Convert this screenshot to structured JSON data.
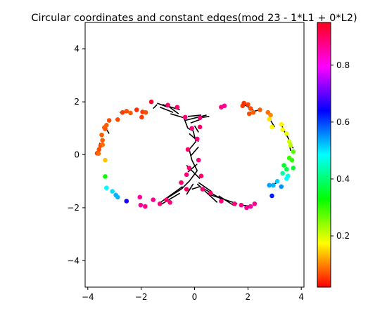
{
  "chart_data": {
    "type": "scatter",
    "title": "Circular coordinates and constant edges(mod 23 - 1*L1 + 0*L2)",
    "xlim": [
      -4.1,
      4.1
    ],
    "ylim": [
      -5,
      5
    ],
    "xticks": [
      -4,
      -2,
      0,
      2,
      4
    ],
    "yticks": [
      -4,
      -2,
      0,
      2,
      4
    ],
    "xticklabels": [
      "−4",
      "−2",
      "0",
      "2",
      "4"
    ],
    "yticklabels": [
      "−4",
      "−2",
      "0",
      "2",
      "4"
    ],
    "colorbar": {
      "cmap": "hsv",
      "range": [
        0.02,
        0.95
      ],
      "ticks": [
        0.2,
        0.4,
        0.6,
        0.8
      ],
      "ticklabels": [
        "0.2",
        "0.4",
        "0.6",
        "0.8"
      ]
    },
    "points": [
      {
        "x": -3.65,
        "y": 0.06,
        "c": 0.04
      },
      {
        "x": -3.58,
        "y": 0.2,
        "c": 0.05
      },
      {
        "x": -3.52,
        "y": 0.35,
        "c": 0.05
      },
      {
        "x": -3.45,
        "y": 0.55,
        "c": 0.06
      },
      {
        "x": -3.48,
        "y": 0.75,
        "c": 0.06
      },
      {
        "x": -3.35,
        "y": 0.98,
        "c": 0.05
      },
      {
        "x": -3.3,
        "y": 1.12,
        "c": 0.06
      },
      {
        "x": -3.2,
        "y": 1.3,
        "c": 0.05
      },
      {
        "x": -3.38,
        "y": 1.03,
        "c": 0.06
      },
      {
        "x": -2.88,
        "y": 1.33,
        "c": 0.05
      },
      {
        "x": -2.7,
        "y": 1.6,
        "c": 0.04
      },
      {
        "x": -2.55,
        "y": 1.65,
        "c": 0.05
      },
      {
        "x": -2.4,
        "y": 1.58,
        "c": 0.06
      },
      {
        "x": -2.17,
        "y": 1.7,
        "c": 0.03
      },
      {
        "x": -1.95,
        "y": 1.62,
        "c": 0.04
      },
      {
        "x": -1.83,
        "y": 1.6,
        "c": 0.05
      },
      {
        "x": -1.98,
        "y": 1.42,
        "c": 0.04
      },
      {
        "x": -1.62,
        "y": 2.0,
        "c": 0.97
      },
      {
        "x": -3.45,
        "y": 0.38,
        "c": 0.07
      },
      {
        "x": -3.6,
        "y": 0.05,
        "c": 0.07
      },
      {
        "x": -3.35,
        "y": -0.2,
        "c": 0.13
      },
      {
        "x": -3.35,
        "y": -0.82,
        "c": 0.33
      },
      {
        "x": -3.3,
        "y": -1.25,
        "c": 0.5
      },
      {
        "x": -3.08,
        "y": -1.38,
        "c": 0.52
      },
      {
        "x": -2.95,
        "y": -1.52,
        "c": 0.55
      },
      {
        "x": -2.88,
        "y": -1.6,
        "c": 0.55
      },
      {
        "x": -2.55,
        "y": -1.75,
        "c": 0.68
      },
      {
        "x": -2.05,
        "y": -1.6,
        "c": 0.9
      },
      {
        "x": -2.02,
        "y": -1.9,
        "c": 0.9
      },
      {
        "x": -1.85,
        "y": -1.95,
        "c": 0.91
      },
      {
        "x": -1.55,
        "y": -1.7,
        "c": 0.91
      },
      {
        "x": -1.3,
        "y": -1.85,
        "c": 0.92
      },
      {
        "x": -1.05,
        "y": -1.7,
        "c": 0.93
      },
      {
        "x": -0.92,
        "y": -1.8,
        "c": 0.92
      },
      {
        "x": -1.0,
        "y": 1.88,
        "c": 0.93
      },
      {
        "x": -0.65,
        "y": 1.8,
        "c": 0.93
      },
      {
        "x": -0.35,
        "y": 1.42,
        "c": 0.92
      },
      {
        "x": 0.2,
        "y": 1.4,
        "c": 0.92
      },
      {
        "x": 1.0,
        "y": 1.8,
        "c": 0.92
      },
      {
        "x": 1.12,
        "y": 1.85,
        "c": 0.9
      },
      {
        "x": 1.8,
        "y": 1.85,
        "c": 0.04
      },
      {
        "x": 1.85,
        "y": 1.95,
        "c": 0.03
      },
      {
        "x": 2.0,
        "y": 1.9,
        "c": 0.04
      },
      {
        "x": 2.1,
        "y": 1.75,
        "c": 0.05
      },
      {
        "x": 2.05,
        "y": 1.55,
        "c": 0.05
      },
      {
        "x": 2.2,
        "y": 1.6,
        "c": 0.06
      },
      {
        "x": 2.45,
        "y": 1.7,
        "c": 0.06
      },
      {
        "x": 2.75,
        "y": 1.6,
        "c": 0.07
      },
      {
        "x": 2.85,
        "y": 1.5,
        "c": 0.09
      },
      {
        "x": 2.8,
        "y": 1.35,
        "c": 0.15
      },
      {
        "x": 2.9,
        "y": 1.05,
        "c": 0.17
      },
      {
        "x": 3.25,
        "y": 1.15,
        "c": 0.16
      },
      {
        "x": 3.3,
        "y": 0.95,
        "c": 0.17
      },
      {
        "x": 3.45,
        "y": 0.8,
        "c": 0.18
      },
      {
        "x": 3.55,
        "y": 0.5,
        "c": 0.2
      },
      {
        "x": 3.6,
        "y": 0.35,
        "c": 0.21
      },
      {
        "x": 3.7,
        "y": 0.12,
        "c": 0.28
      },
      {
        "x": 3.55,
        "y": -0.12,
        "c": 0.3
      },
      {
        "x": 3.65,
        "y": -0.2,
        "c": 0.3
      },
      {
        "x": 3.35,
        "y": -0.4,
        "c": 0.36
      },
      {
        "x": 3.7,
        "y": -0.5,
        "c": 0.36
      },
      {
        "x": 3.45,
        "y": -0.55,
        "c": 0.38
      },
      {
        "x": 3.3,
        "y": -0.7,
        "c": 0.44
      },
      {
        "x": 3.5,
        "y": -0.8,
        "c": 0.48
      },
      {
        "x": 3.45,
        "y": -0.9,
        "c": 0.5
      },
      {
        "x": 3.1,
        "y": -1.0,
        "c": 0.53
      },
      {
        "x": 2.95,
        "y": -1.15,
        "c": 0.55
      },
      {
        "x": 2.8,
        "y": -1.15,
        "c": 0.56
      },
      {
        "x": 3.25,
        "y": -1.2,
        "c": 0.57
      },
      {
        "x": 2.9,
        "y": -1.55,
        "c": 0.65
      },
      {
        "x": 2.25,
        "y": -1.85,
        "c": 0.91
      },
      {
        "x": 2.1,
        "y": -1.95,
        "c": 0.9
      },
      {
        "x": 1.95,
        "y": -2.0,
        "c": 0.9
      },
      {
        "x": 1.75,
        "y": -1.9,
        "c": 0.91
      },
      {
        "x": 1.5,
        "y": -1.85,
        "c": 0.92
      },
      {
        "x": 1.0,
        "y": -1.75,
        "c": 0.92
      },
      {
        "x": 0.6,
        "y": -1.45,
        "c": 0.93
      },
      {
        "x": 0.3,
        "y": -1.3,
        "c": 0.92
      },
      {
        "x": -0.3,
        "y": -1.3,
        "c": 0.93
      },
      {
        "x": -0.5,
        "y": -1.05,
        "c": 0.93
      },
      {
        "x": -0.2,
        "y": -0.5,
        "c": 0.92
      },
      {
        "x": 0.15,
        "y": -0.2,
        "c": 0.92
      },
      {
        "x": -0.25,
        "y": 0.2,
        "c": 0.93
      },
      {
        "x": 0.1,
        "y": 0.6,
        "c": 0.92
      },
      {
        "x": -0.1,
        "y": 1.0,
        "c": 0.92
      },
      {
        "x": 0.25,
        "y": -0.8,
        "c": 0.93
      },
      {
        "x": -0.3,
        "y": -0.75,
        "c": 0.92
      },
      {
        "x": 0.2,
        "y": 1.05,
        "c": 0.93
      }
    ],
    "edges": [
      [
        [
          -3.55,
          0.45
        ],
        [
          -3.6,
          0.05
        ]
      ],
      [
        [
          -3.35,
          1.05
        ],
        [
          -3.2,
          0.8
        ]
      ],
      [
        [
          -2.8,
          1.6
        ],
        [
          -2.55,
          1.62
        ]
      ],
      [
        [
          -1.95,
          1.65
        ],
        [
          -1.8,
          1.55
        ]
      ],
      [
        [
          -1.4,
          1.95
        ],
        [
          -1.0,
          1.8
        ]
      ],
      [
        [
          -1.3,
          1.8
        ],
        [
          -0.8,
          1.6
        ]
      ],
      [
        [
          -1.0,
          1.85
        ],
        [
          -0.6,
          1.55
        ]
      ],
      [
        [
          -0.9,
          1.55
        ],
        [
          -0.4,
          1.4
        ]
      ],
      [
        [
          -0.4,
          1.4
        ],
        [
          -0.25,
          1.0
        ]
      ],
      [
        [
          -0.25,
          1.0
        ],
        [
          -0.05,
          0.9
        ]
      ],
      [
        [
          -0.05,
          0.9
        ],
        [
          0.05,
          0.5
        ]
      ],
      [
        [
          0.05,
          0.5
        ],
        [
          -0.2,
          0.2
        ]
      ],
      [
        [
          -0.2,
          0.2
        ],
        [
          -0.1,
          -0.2
        ]
      ],
      [
        [
          -0.1,
          -0.2
        ],
        [
          0.1,
          -0.6
        ]
      ],
      [
        [
          0.1,
          -0.6
        ],
        [
          -0.2,
          -1.0
        ]
      ],
      [
        [
          -0.2,
          -1.0
        ],
        [
          -0.5,
          -1.3
        ]
      ],
      [
        [
          -0.5,
          -1.3
        ],
        [
          -1.05,
          -1.65
        ]
      ],
      [
        [
          -0.45,
          -1.2
        ],
        [
          -1.35,
          -1.85
        ]
      ],
      [
        [
          -0.35,
          1.3
        ],
        [
          0.45,
          1.5
        ]
      ],
      [
        [
          0.2,
          1.4
        ],
        [
          0.55,
          1.45
        ]
      ],
      [
        [
          -0.15,
          1.2
        ],
        [
          0.25,
          1.35
        ]
      ],
      [
        [
          0.0,
          1.1
        ],
        [
          0.15,
          0.85
        ]
      ],
      [
        [
          -0.2,
          0.8
        ],
        [
          0.15,
          0.5
        ]
      ],
      [
        [
          0.15,
          0.3
        ],
        [
          -0.15,
          -0.05
        ]
      ],
      [
        [
          0.1,
          -0.35
        ],
        [
          -0.25,
          -0.65
        ]
      ],
      [
        [
          -0.3,
          -0.4
        ],
        [
          0.2,
          -0.9
        ]
      ],
      [
        [
          0.15,
          -1.05
        ],
        [
          0.65,
          -1.4
        ]
      ],
      [
        [
          0.3,
          -1.25
        ],
        [
          1.05,
          -1.7
        ]
      ],
      [
        [
          0.55,
          -1.5
        ],
        [
          1.6,
          -1.85
        ]
      ],
      [
        [
          0.9,
          -1.55
        ],
        [
          1.45,
          -1.9
        ]
      ],
      [
        [
          0.1,
          -1.1
        ],
        [
          0.85,
          -1.8
        ]
      ],
      [
        [
          -0.1,
          -1.3
        ],
        [
          0.2,
          -1.2
        ]
      ],
      [
        [
          1.85,
          1.9
        ],
        [
          2.2,
          1.7
        ]
      ],
      [
        [
          2.05,
          1.6
        ],
        [
          2.45,
          1.7
        ]
      ],
      [
        [
          2.85,
          1.3
        ],
        [
          3.0,
          1.05
        ]
      ],
      [
        [
          3.25,
          1.15
        ],
        [
          3.45,
          0.7
        ]
      ],
      [
        [
          3.45,
          0.75
        ],
        [
          3.65,
          0.35
        ]
      ],
      [
        [
          3.5,
          0.5
        ],
        [
          3.7,
          0.25
        ]
      ],
      [
        [
          3.55,
          0.4
        ],
        [
          3.6,
          0.15
        ]
      ],
      [
        [
          2.85,
          -1.15
        ],
        [
          3.1,
          -1.05
        ]
      ],
      [
        [
          1.75,
          -1.9
        ],
        [
          2.15,
          -1.95
        ]
      ],
      [
        [
          -1.2,
          1.9
        ],
        [
          -0.55,
          1.7
        ]
      ],
      [
        [
          -1.55,
          1.75
        ],
        [
          -1.4,
          1.9
        ]
      ],
      [
        [
          -0.25,
          1.45
        ],
        [
          0.25,
          1.5
        ]
      ],
      [
        [
          -0.3,
          -1.5
        ],
        [
          -0.05,
          -1.1
        ]
      ],
      [
        [
          -1.3,
          -1.9
        ],
        [
          -0.55,
          -1.45
        ]
      ]
    ]
  }
}
